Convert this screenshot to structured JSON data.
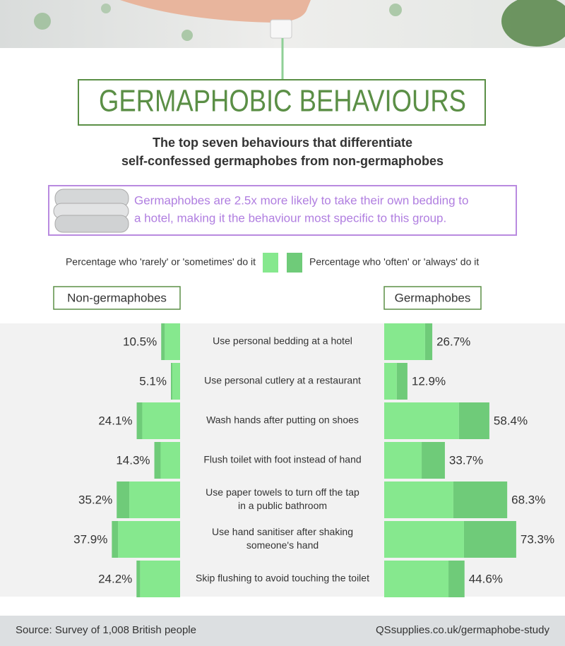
{
  "header": {
    "title": "GERMAPHOBIC BEHAVIOURS",
    "subtitle": [
      "The top seven behaviours that differentiate",
      "self-confessed germaphobes from non-germaphobes"
    ],
    "callout": [
      "Germaphobes are 2.5x more likely to take their own bedding to",
      "a hotel, making it the behaviour most specific to this group."
    ]
  },
  "chart_data": {
    "type": "diverging-stacked-bar",
    "legend": [
      {
        "label": "Percentage who 'rarely' or 'sometimes' do it",
        "color": "#86e88e"
      },
      {
        "label": "Percentage who 'often' or 'always' do it",
        "color": "#6fcb79"
      }
    ],
    "categories": [
      [
        "Use personal bedding at a hotel"
      ],
      [
        "Use personal cutlery at a restaurant"
      ],
      [
        "Wash hands after putting on shoes"
      ],
      [
        "Flush toilet with foot instead of hand"
      ],
      [
        "Use paper towels to turn off the tap",
        "in a public bathroom"
      ],
      [
        "Use hand sanitiser after shaking",
        "someone's hand"
      ],
      [
        "Skip flushing to avoid touching the toilet"
      ]
    ],
    "panels": [
      {
        "name": "Non-germaphobes",
        "side": "left",
        "segments": [
          [
            8.5,
            4.3,
            21.0,
            10.8,
            28.2,
            34.4,
            22.2
          ],
          [
            2.0,
            0.8,
            3.1,
            3.5,
            7.0,
            3.5,
            2.0
          ]
        ],
        "totals": [
          10.5,
          5.1,
          24.1,
          14.3,
          35.2,
          37.9,
          24.2
        ],
        "value_labels": [
          "10.5%",
          "5.1%",
          "24.1%",
          "14.3%",
          "35.2%",
          "37.9%",
          "24.2%"
        ]
      },
      {
        "name": "Germaphobes",
        "side": "right",
        "segments": [
          [
            22.7,
            7.0,
            41.5,
            20.8,
            38.4,
            44.3,
            35.7
          ],
          [
            4.0,
            5.9,
            16.9,
            12.9,
            29.9,
            29.0,
            8.9
          ]
        ],
        "totals": [
          26.7,
          12.9,
          58.4,
          33.7,
          68.3,
          73.3,
          44.6
        ],
        "value_labels": [
          "26.7%",
          "12.9%",
          "58.4%",
          "33.7%",
          "68.3%",
          "73.3%",
          "44.6%"
        ]
      }
    ]
  },
  "footer": {
    "source": "Source: Survey of 1,008 British people",
    "url": "QSsupplies.co.uk/germaphobe-study"
  }
}
